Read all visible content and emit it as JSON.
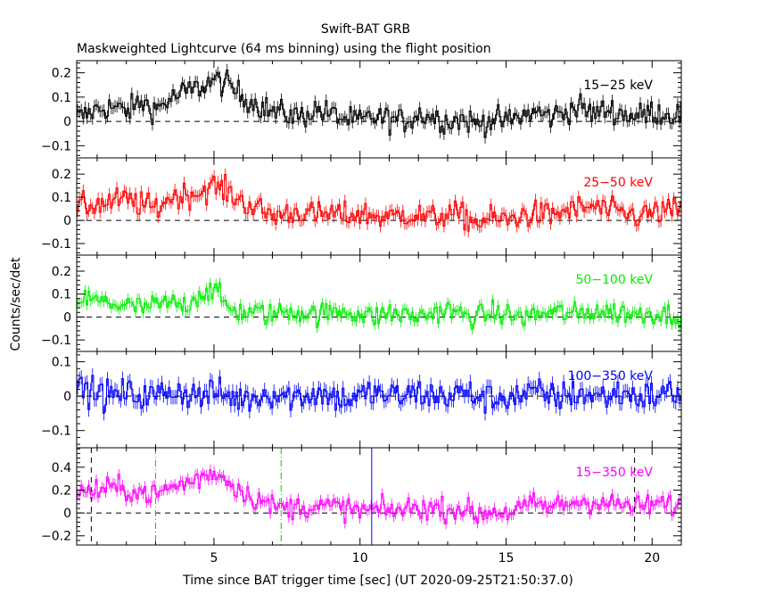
{
  "page": {
    "title": "Swift-BAT GRB",
    "subtitle": "Maskweighted Lightcurve (64 ms binning) using the flight position"
  },
  "chart_data": {
    "type": "line",
    "title": "Swift-BAT GRB",
    "subtitle": "Maskweighted Lightcurve (64 ms binning) using the flight position",
    "xlabel": "Time since BAT trigger time [sec] (UT 2020-09-25T21:50:37.0)",
    "ylabel": "Counts/sec/det",
    "xlim": [
      0.3,
      21
    ],
    "xticks": [
      5,
      10,
      15,
      20
    ],
    "bin_width_s": 0.064,
    "panels": [
      {
        "name": "15-25 keV",
        "label": "15−25 keV",
        "color": "#000000",
        "ylim": [
          -0.15,
          0.25
        ],
        "yticks": [
          -0.1,
          0,
          0.1,
          0.2
        ],
        "yticklabels": [
          "−0.1",
          "0",
          "0.1",
          "0.2"
        ],
        "x": [
          0.5,
          1,
          1.5,
          2,
          2.5,
          3,
          3.5,
          4,
          4.5,
          5,
          5.5,
          6,
          6.5,
          7,
          7.5,
          8,
          8.5,
          9,
          9.5,
          10,
          10.5,
          11,
          11.5,
          12,
          12.5,
          13,
          13.5,
          14,
          14.5,
          15,
          15.5,
          16,
          16.5,
          17,
          17.5,
          18,
          18.5,
          19,
          19.5,
          20,
          20.5
        ],
        "y": [
          0.02,
          0.05,
          0.06,
          0.04,
          0.08,
          0.05,
          0.09,
          0.12,
          0.14,
          0.17,
          0.15,
          0.1,
          0.07,
          0.04,
          0.03,
          0.02,
          0.05,
          0.03,
          0.01,
          0.0,
          0.02,
          0.01,
          0.0,
          0.03,
          0.02,
          0.0,
          0.01,
          -0.01,
          0.01,
          0.0,
          0.02,
          0.04,
          0.02,
          0.04,
          0.06,
          0.03,
          0.05,
          0.03,
          0.02,
          0.04,
          0.03
        ]
      },
      {
        "name": "25-50 keV",
        "label": "25−50 keV",
        "color": "#ff0000",
        "ylim": [
          -0.15,
          0.27
        ],
        "yticks": [
          -0.1,
          0,
          0.1,
          0.2
        ],
        "yticklabels": [
          "−0.1",
          "0",
          "0.1",
          "0.2"
        ],
        "x": [
          0.5,
          1,
          1.5,
          2,
          2.5,
          3,
          3.5,
          4,
          4.5,
          5,
          5.5,
          6,
          6.5,
          7,
          7.5,
          8,
          8.5,
          9,
          9.5,
          10,
          10.5,
          11,
          11.5,
          12,
          12.5,
          13,
          13.5,
          14,
          14.5,
          15,
          15.5,
          16,
          16.5,
          17,
          17.5,
          18,
          18.5,
          19,
          19.5,
          20,
          20.5
        ],
        "y": [
          0.06,
          0.07,
          0.08,
          0.09,
          0.07,
          0.05,
          0.1,
          0.11,
          0.12,
          0.15,
          0.12,
          0.08,
          0.05,
          0.02,
          0.03,
          0.04,
          0.02,
          0.03,
          0.02,
          0.03,
          0.02,
          0.01,
          0.03,
          0.02,
          0.01,
          0.03,
          0.02,
          -0.01,
          0.01,
          0.0,
          0.02,
          0.03,
          0.02,
          0.04,
          0.05,
          0.06,
          0.04,
          0.03,
          0.02,
          0.03,
          0.04
        ]
      },
      {
        "name": "50-100 keV",
        "label": "50−100 keV",
        "color": "#00ee00",
        "ylim": [
          -0.15,
          0.27
        ],
        "yticks": [
          -0.1,
          0,
          0.1,
          0.2
        ],
        "yticklabels": [
          "−0.1",
          "0",
          "0.1",
          "0.2"
        ],
        "x": [
          0.5,
          1,
          1.5,
          2,
          2.5,
          3,
          3.5,
          4,
          4.5,
          5,
          5.5,
          6,
          6.5,
          7,
          7.5,
          8,
          8.5,
          9,
          9.5,
          10,
          10.5,
          11,
          11.5,
          12,
          12.5,
          13,
          13.5,
          14,
          14.5,
          15,
          15.5,
          16,
          16.5,
          17,
          17.5,
          18,
          18.5,
          19,
          19.5,
          20,
          20.5
        ],
        "y": [
          0.08,
          0.07,
          0.06,
          0.05,
          0.04,
          0.05,
          0.06,
          0.05,
          0.1,
          0.12,
          0.04,
          0.02,
          0.02,
          0.01,
          0.03,
          0.02,
          0.01,
          0.02,
          0.03,
          0.01,
          0.0,
          0.02,
          0.01,
          0.0,
          0.02,
          0.03,
          0.01,
          0.0,
          0.02,
          0.01,
          0.0,
          0.01,
          0.02,
          0.02,
          0.01,
          0.03,
          0.02,
          0.02,
          0.01,
          0.02,
          0.01
        ]
      },
      {
        "name": "100-350 keV",
        "label": "100−350 keV",
        "color": "#0000ff",
        "ylim": [
          -0.15,
          0.13
        ],
        "yticks": [
          -0.1,
          0,
          0.1
        ],
        "yticklabels": [
          "−0.1",
          "0",
          "0.1"
        ],
        "x": [
          0.5,
          1,
          1.5,
          2,
          2.5,
          3,
          3.5,
          4,
          4.5,
          5,
          5.5,
          6,
          6.5,
          7,
          7.5,
          8,
          8.5,
          9,
          9.5,
          10,
          10.5,
          11,
          11.5,
          12,
          12.5,
          13,
          13.5,
          14,
          14.5,
          15,
          15.5,
          16,
          16.5,
          17,
          17.5,
          18,
          18.5,
          19,
          19.5,
          20,
          20.5
        ],
        "y": [
          0.02,
          0.01,
          0.0,
          0.01,
          0.0,
          0.0,
          0.02,
          0.01,
          0.0,
          0.01,
          0.0,
          -0.01,
          0.0,
          0.01,
          0.0,
          0.0,
          0.01,
          0.0,
          -0.01,
          0.0,
          0.01,
          0.0,
          0.0,
          0.01,
          0.0,
          0.0,
          0.01,
          0.0,
          -0.01,
          0.0,
          0.0,
          0.01,
          0.0,
          0.0,
          0.01,
          0.0,
          0.0,
          0.01,
          0.0,
          0.0,
          0.01
        ]
      },
      {
        "name": "15-350 keV",
        "label": "15−350 keV",
        "color": "#ff00ff",
        "ylim": [
          -0.28,
          0.57
        ],
        "yticks": [
          -0.2,
          0,
          0.2,
          0.4
        ],
        "yticklabels": [
          "−0.2",
          "0",
          "0.2",
          "0.4"
        ],
        "x": [
          0.5,
          1,
          1.5,
          2,
          2.5,
          3,
          3.5,
          4,
          4.5,
          5,
          5.5,
          6,
          6.5,
          7,
          7.5,
          8,
          8.5,
          9,
          9.5,
          10,
          10.5,
          11,
          11.5,
          12,
          12.5,
          13,
          13.5,
          14,
          14.5,
          15,
          15.5,
          16,
          16.5,
          17,
          17.5,
          18,
          18.5,
          19,
          19.5,
          20,
          20.5
        ],
        "y": [
          0.18,
          0.2,
          0.22,
          0.2,
          0.18,
          0.16,
          0.22,
          0.26,
          0.3,
          0.36,
          0.28,
          0.18,
          0.12,
          0.06,
          0.04,
          0.06,
          0.05,
          0.06,
          0.04,
          0.02,
          0.03,
          0.02,
          0.03,
          0.05,
          0.04,
          0.03,
          0.04,
          -0.02,
          0.02,
          0.0,
          0.04,
          0.08,
          0.05,
          0.08,
          0.1,
          0.1,
          0.08,
          0.07,
          0.05,
          0.08,
          0.07
        ]
      }
    ],
    "reference_lines": [
      {
        "name": "black-dashed-left",
        "x": 0.8,
        "color": "#000000",
        "style": "dashed"
      },
      {
        "name": "green-dashdot-t-start",
        "x": 3.0,
        "color": "#00cc00",
        "style": "dashdot"
      },
      {
        "name": "green-dashdot-t-end",
        "x": 7.3,
        "color": "#00cc00",
        "style": "dashdot"
      },
      {
        "name": "blue-solid-trigger",
        "x": 10.4,
        "color": "#0000ff",
        "style": "solid"
      },
      {
        "name": "black-dashed-right",
        "x": 19.4,
        "color": "#000000",
        "style": "dashed"
      }
    ],
    "grid": false,
    "legend": "none (per-panel energy band labels at top-right)"
  }
}
